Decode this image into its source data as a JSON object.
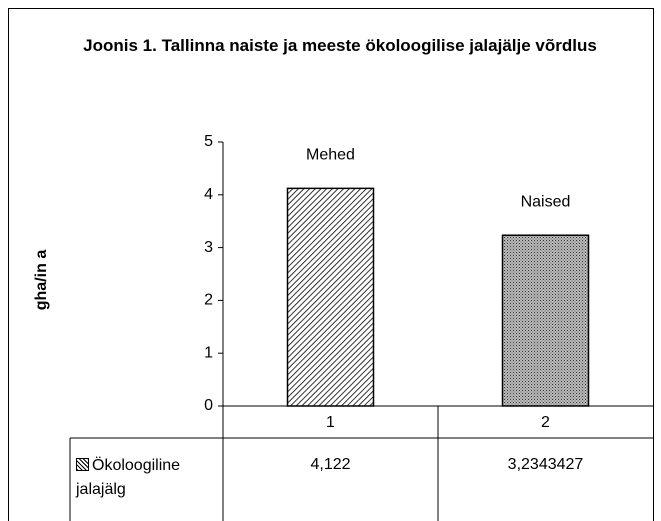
{
  "chart_data": {
    "type": "bar",
    "title": "Joonis 1. Tallinna naiste ja meeste ökoloogilise jalajälje võrdlus",
    "y_label": "gha/in a",
    "categories": [
      "1",
      "2"
    ],
    "series": [
      {
        "name": "Ökoloogiline jalajälg",
        "values": [
          4.122,
          3.2343427
        ],
        "value_labels": [
          "4,122",
          "3,2343427"
        ]
      }
    ],
    "annotations": [
      "Mehed",
      "Naised"
    ],
    "ylim": [
      0,
      5
    ],
    "yticks": [
      0,
      1,
      2,
      3,
      4,
      5
    ],
    "data_table": true
  }
}
